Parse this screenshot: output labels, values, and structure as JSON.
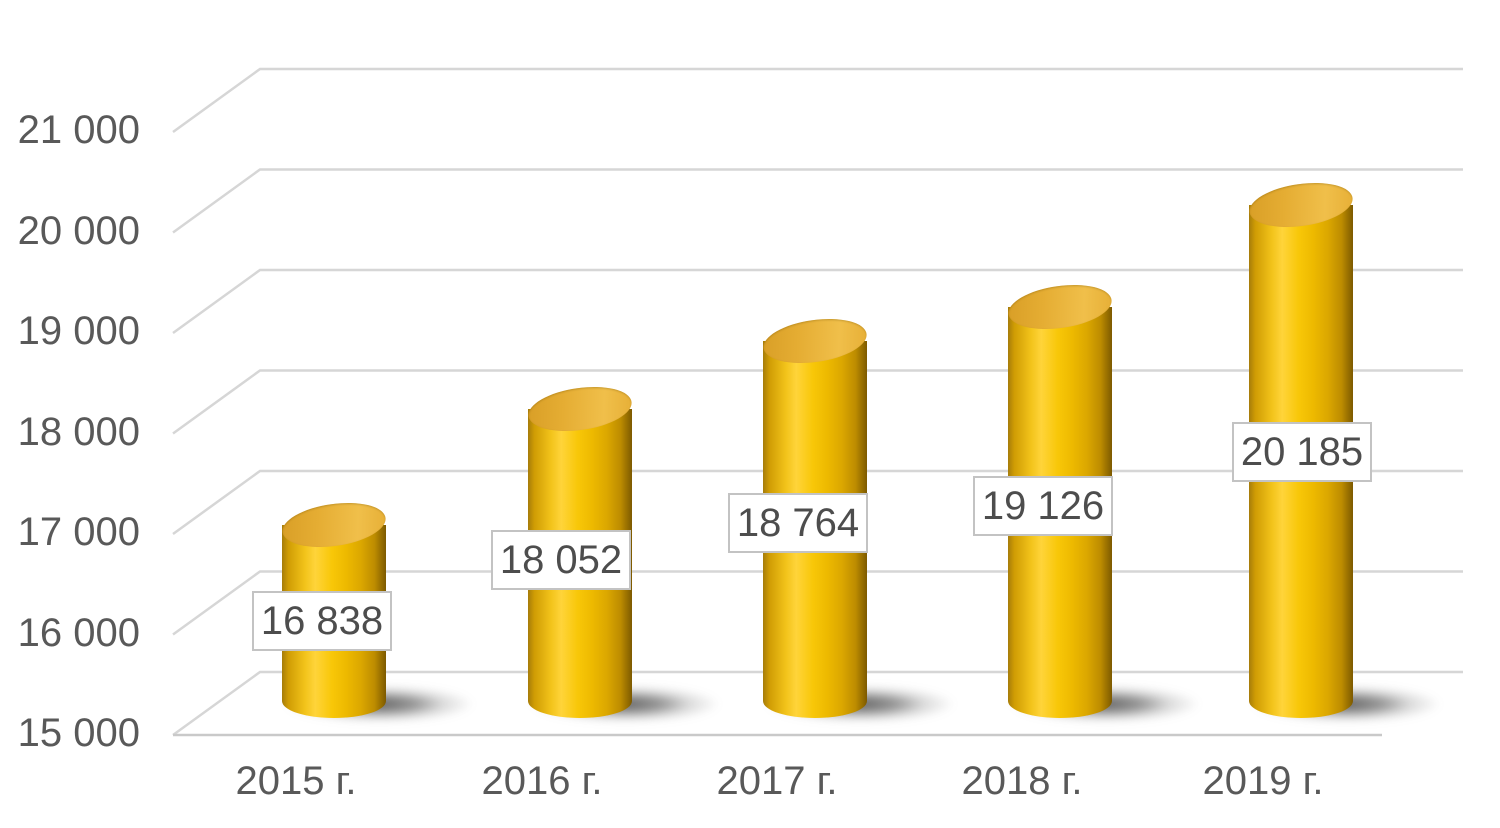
{
  "chart_data": {
    "type": "bar",
    "subtype": "3d-cylinder",
    "title": "",
    "xlabel": "",
    "ylabel": "",
    "categories": [
      "2015 г.",
      "2016 г.",
      "2017 г.",
      "2018 г.",
      "2019 г."
    ],
    "values": [
      16838,
      18052,
      18764,
      19126,
      20185
    ],
    "data_labels": [
      "16 838",
      "18 052",
      "18 764",
      "19 126",
      "20 185"
    ],
    "ylim": [
      15000,
      21000
    ],
    "y_tick_step": 1000,
    "y_ticks": [
      {
        "value": 21000,
        "label": "21 000"
      },
      {
        "value": 20000,
        "label": "20 000"
      },
      {
        "value": 19000,
        "label": "19 000"
      },
      {
        "value": 18000,
        "label": "18 000"
      },
      {
        "value": 17000,
        "label": "17 000"
      },
      {
        "value": 16000,
        "label": "16 000"
      },
      {
        "value": 15000,
        "label": "15 000"
      }
    ],
    "grid": true,
    "legend": "none",
    "colors": {
      "bar": "#F2BE00",
      "bar_top": "#E9B33A",
      "gridline": "#D6D6D6",
      "axis_line": "#C9C9C9",
      "axis_text": "#595959",
      "label_text": "#4D4D4D",
      "label_box_bg": "#FFFFFF",
      "label_box_border": "#C3C3C3",
      "background": "#FFFFFF"
    }
  }
}
